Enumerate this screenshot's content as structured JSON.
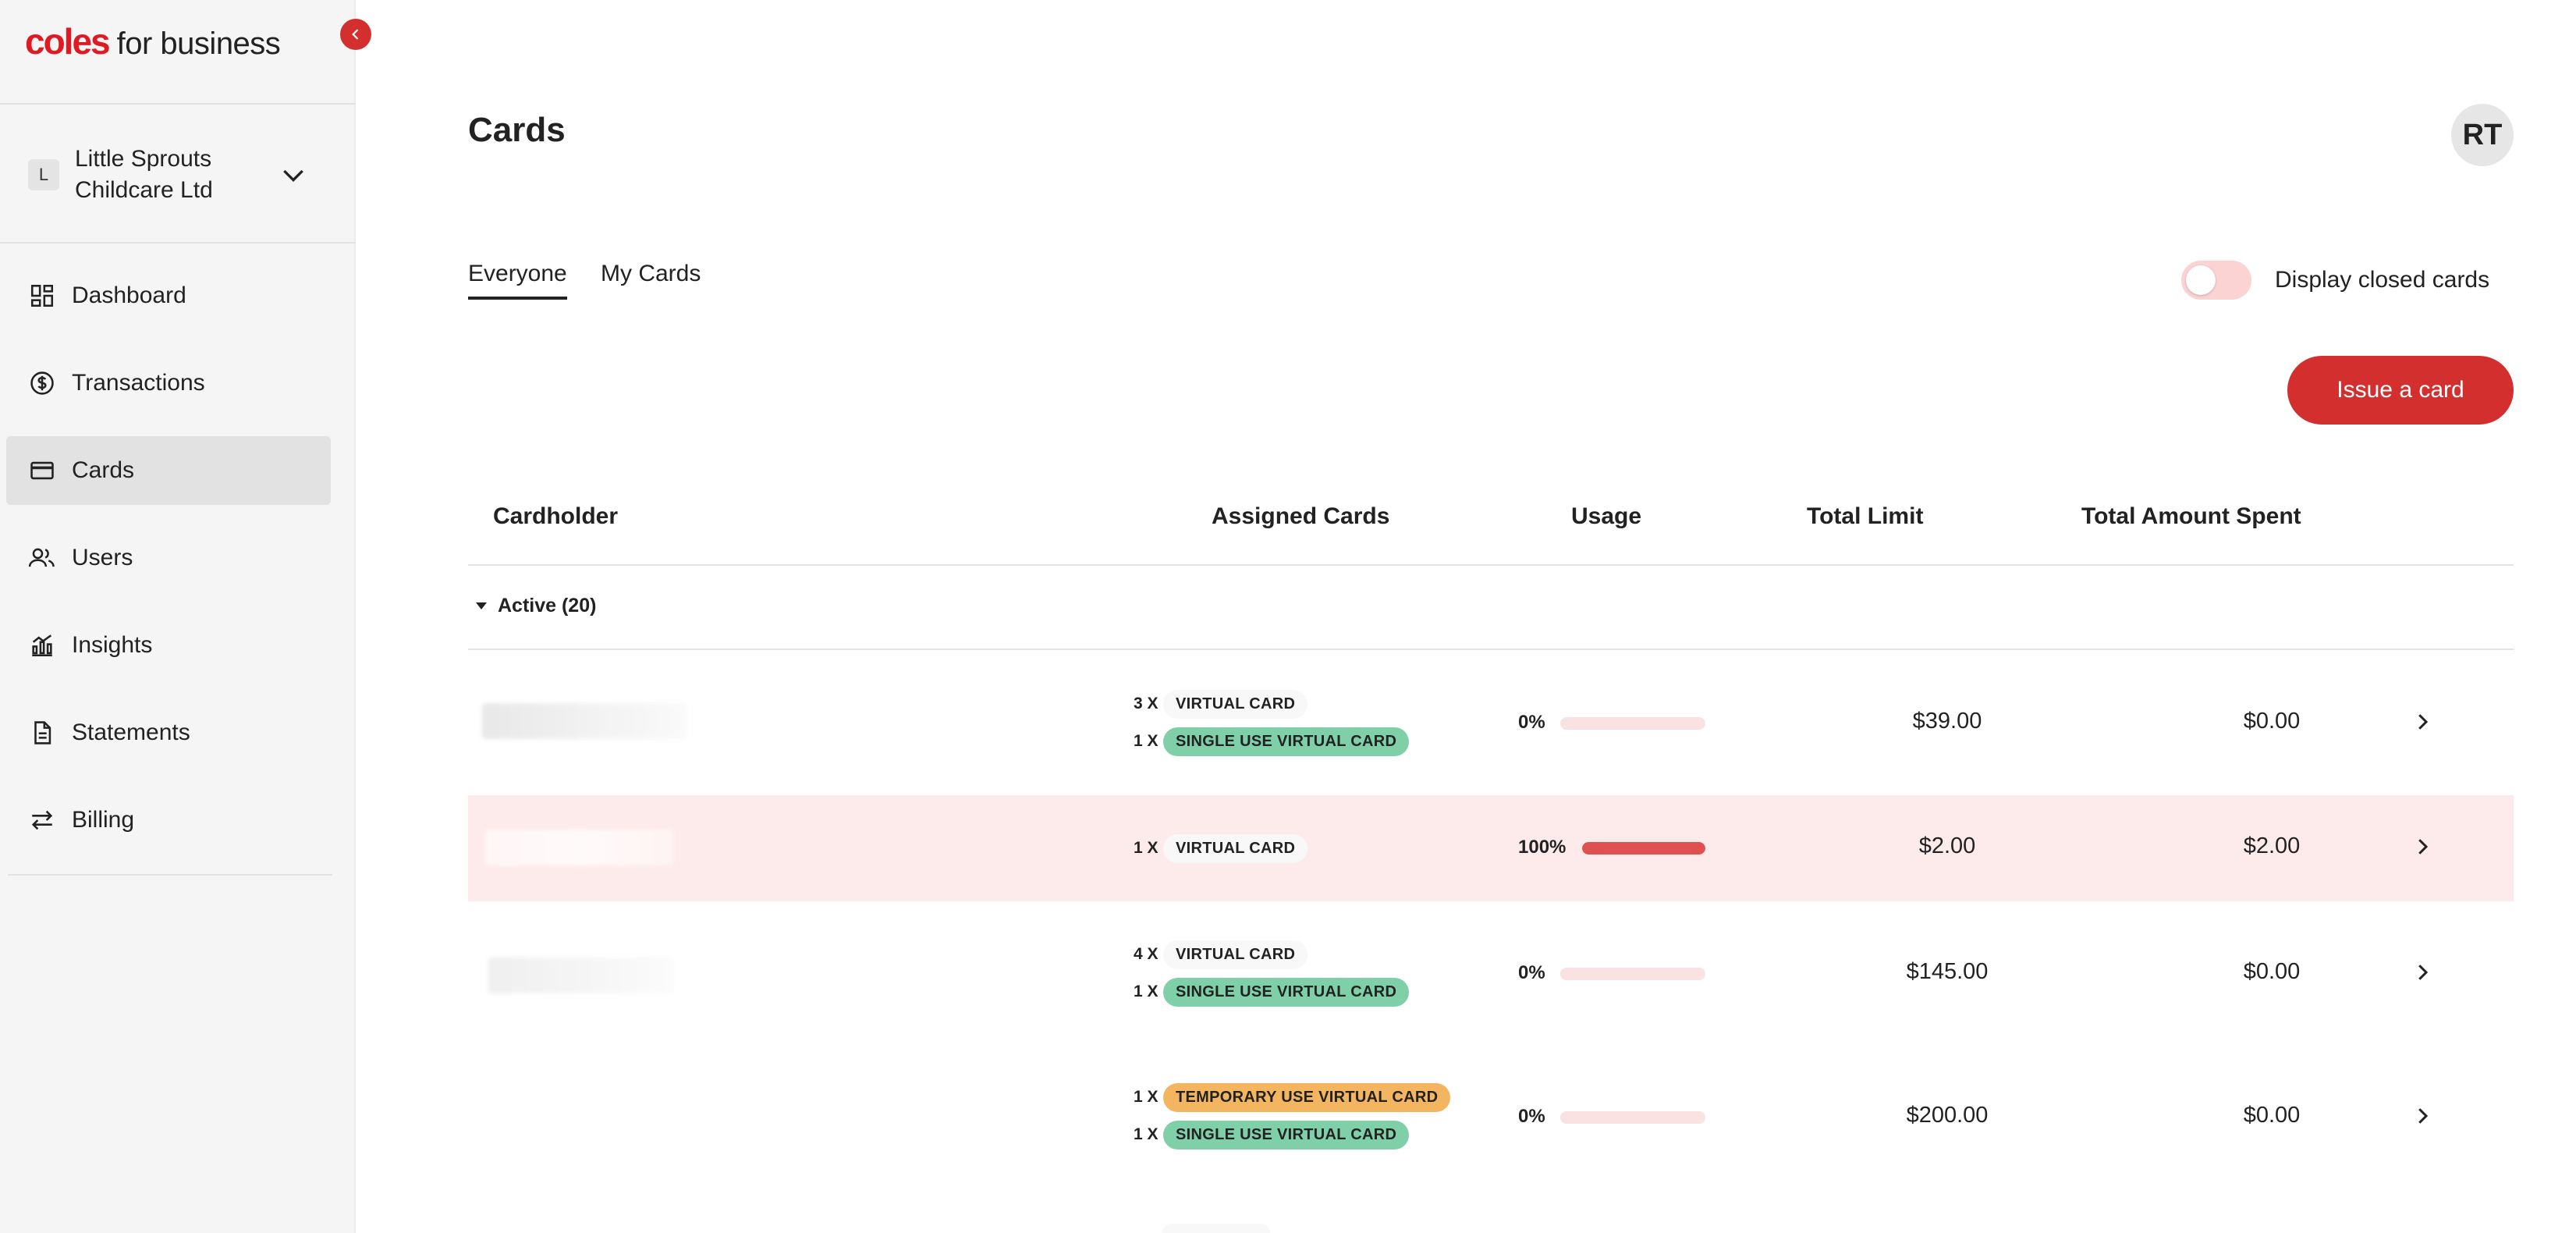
{
  "brand": {
    "name_part1": "coles",
    "name_part2": "for business",
    "accent": "#d32f2f"
  },
  "sidebar": {
    "org": {
      "badge": "L",
      "name": "Little Sprouts Childcare Ltd"
    },
    "items": [
      {
        "label": "Dashboard",
        "icon": "dashboard-icon"
      },
      {
        "label": "Transactions",
        "icon": "dollar-circle-icon"
      },
      {
        "label": "Cards",
        "icon": "credit-card-icon",
        "active": true
      },
      {
        "label": "Users",
        "icon": "users-icon"
      },
      {
        "label": "Insights",
        "icon": "chart-icon"
      },
      {
        "label": "Statements",
        "icon": "document-icon"
      },
      {
        "label": "Billing",
        "icon": "transfer-arrows-icon"
      }
    ]
  },
  "header": {
    "title": "Cards",
    "avatar_initials": "RT"
  },
  "tabs": [
    {
      "label": "Everyone",
      "active": true
    },
    {
      "label": "My Cards",
      "active": false
    }
  ],
  "toggle": {
    "label": "Display closed cards",
    "on": false
  },
  "actions": {
    "issue_label": "Issue a card"
  },
  "table": {
    "columns": [
      "Cardholder",
      "Assigned Cards",
      "Usage",
      "Total Limit",
      "Total Amount Spent"
    ],
    "group": {
      "label": "Active (20)"
    },
    "rows": [
      {
        "cards": [
          {
            "qty": "3 X",
            "type": "VIRTUAL CARD"
          },
          {
            "qty": "1 X",
            "type": "SINGLE USE VIRTUAL CARD"
          }
        ],
        "usage_label": "0%",
        "usage": 0,
        "limit": "$39.00",
        "spent": "$0.00"
      },
      {
        "cards": [
          {
            "qty": "1 X",
            "type": "VIRTUAL CARD"
          }
        ],
        "usage_label": "100%",
        "usage": 1,
        "limit": "$2.00",
        "spent": "$2.00"
      },
      {
        "cards": [
          {
            "qty": "4 X",
            "type": "VIRTUAL CARD"
          },
          {
            "qty": "1 X",
            "type": "SINGLE USE VIRTUAL CARD"
          }
        ],
        "usage_label": "0%",
        "usage": 0,
        "limit": "$145.00",
        "spent": "$0.00"
      },
      {
        "cards": [
          {
            "qty": "1 X",
            "type": "TEMPORARY USE VIRTUAL CARD"
          },
          {
            "qty": "1 X",
            "type": "SINGLE USE VIRTUAL CARD"
          }
        ],
        "usage_label": "0%",
        "usage": 0,
        "limit": "$200.00",
        "spent": "$0.00"
      }
    ]
  }
}
